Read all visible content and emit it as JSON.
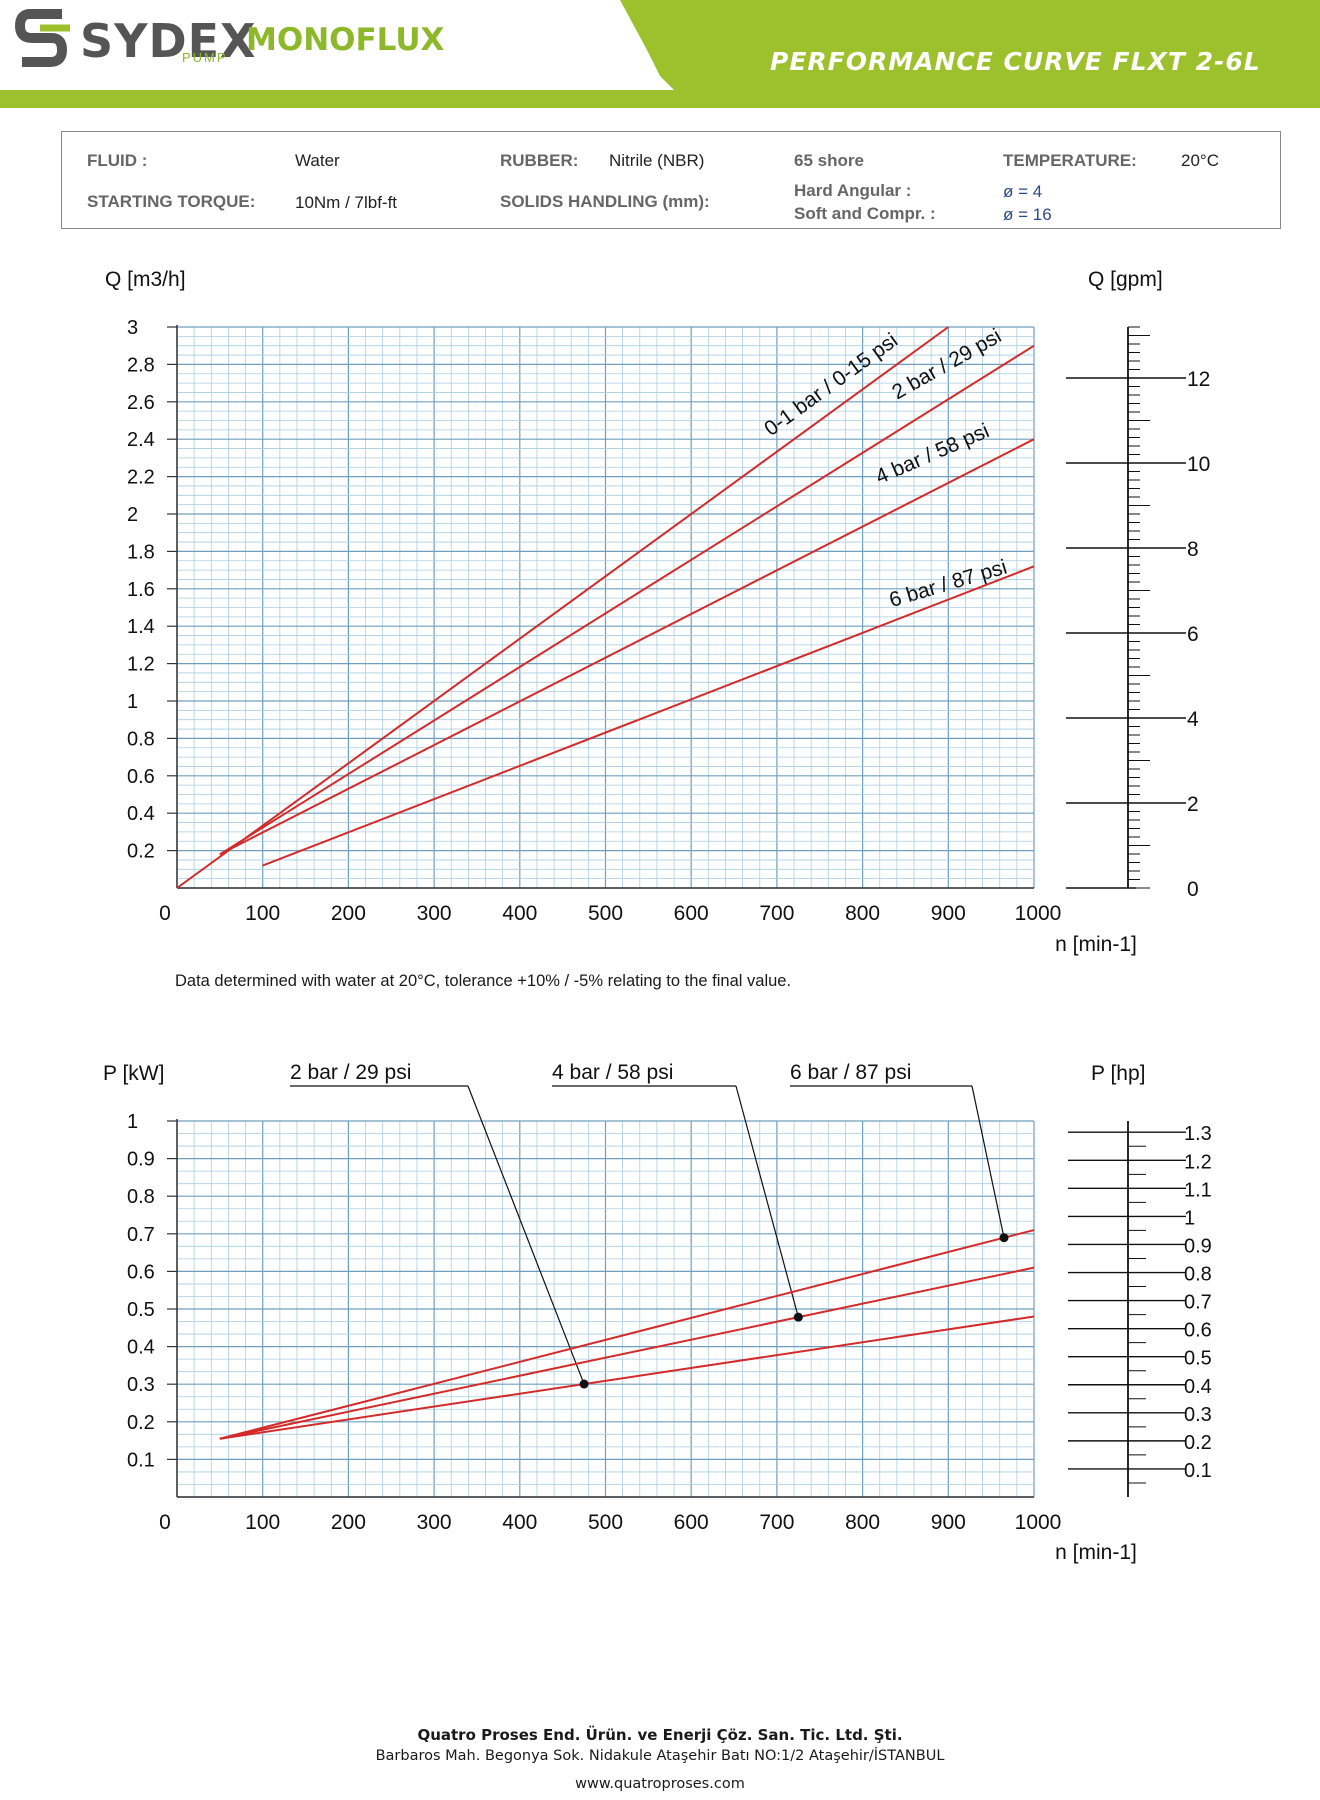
{
  "header": {
    "brand": "SYDEX",
    "brand_sub": "PUMP",
    "brand2": "MONOFLUX",
    "title": "PERFORMANCE CURVE FLXT  2-6L",
    "colors": {
      "green": "#9dc12c",
      "grey": "#555555"
    }
  },
  "info": {
    "fluid_label": "FLUID :",
    "fluid_value": "Water",
    "rubber_label": "RUBBER:",
    "rubber_value": "Nitrile (NBR)",
    "shore": "65 shore",
    "temperature_label": "TEMPERATURE:",
    "temperature_value": "20°C",
    "torque_label": "STARTING TORQUE:",
    "torque_value": "10Nm / 7lbf-ft",
    "solids_label": "SOLIDS HANDLING (mm):",
    "hard_label": "Hard Angular :",
    "hard_value": "ø = 4",
    "soft_label": "Soft and Compr. :",
    "soft_value": "ø = 16"
  },
  "note": "Data determined with water at 20°C, tolerance +10% / -5% relating to the final value.",
  "chart_data": [
    {
      "type": "line",
      "title": "",
      "ylabel": "Q [m3/h]",
      "y2label": "Q [gpm]",
      "xlabel": "n [min-1]",
      "xlim": [
        0,
        1000
      ],
      "ylim": [
        0,
        3
      ],
      "y2lim": [
        0,
        13.2
      ],
      "grid": true,
      "x_ticks": [
        "0",
        "100",
        "200",
        "300",
        "400",
        "500",
        "600",
        "700",
        "800",
        "900",
        "1000"
      ],
      "y_ticks": [
        "0.2",
        "0.4",
        "0.6",
        "0.8",
        "1",
        "1.2",
        "1.4",
        "1.6",
        "1.8",
        "2",
        "2.2",
        "2.4",
        "2.6",
        "2.8",
        "3"
      ],
      "y2_ticks": [
        "0",
        "2",
        "4",
        "6",
        "8",
        "10",
        "12"
      ],
      "series": [
        {
          "name": "0-1 bar / 0-15 psi",
          "x": [
            0,
            900
          ],
          "y": [
            0,
            3.0
          ]
        },
        {
          "name": "2 bar / 29 psi",
          "x": [
            50,
            1000
          ],
          "y": [
            0.18,
            2.9
          ]
        },
        {
          "name": "4 bar / 58 psi",
          "x": [
            50,
            1000
          ],
          "y": [
            0.18,
            2.4
          ]
        },
        {
          "name": "6 bar / 87 psi",
          "x": [
            100,
            1000
          ],
          "y": [
            0.12,
            1.72
          ]
        }
      ]
    },
    {
      "type": "line",
      "title": "",
      "ylabel": "P [kW]",
      "y2label": "P [hp]",
      "xlabel": "n [min-1]",
      "xlim": [
        0,
        1000
      ],
      "ylim": [
        0,
        1
      ],
      "y2lim": [
        0,
        1.34
      ],
      "grid": true,
      "x_ticks": [
        "0",
        "100",
        "200",
        "300",
        "400",
        "500",
        "600",
        "700",
        "800",
        "900",
        "1000"
      ],
      "y_ticks": [
        "0.1",
        "0.2",
        "0.3",
        "0.4",
        "0.5",
        "0.6",
        "0.7",
        "0.8",
        "0.9",
        "1"
      ],
      "y2_ticks": [
        "0.1",
        "0.2",
        "0.3",
        "0.4",
        "0.5",
        "0.6",
        "0.7",
        "0.8",
        "0.9",
        "1",
        "1.1",
        "1.2",
        "1.3"
      ],
      "series": [
        {
          "name": "2 bar / 29 psi",
          "x": [
            50,
            1000
          ],
          "y": [
            0.155,
            0.48
          ],
          "marker_x": 475
        },
        {
          "name": "4 bar / 58 psi",
          "x": [
            50,
            1000
          ],
          "y": [
            0.155,
            0.61
          ],
          "marker_x": 725
        },
        {
          "name": "6 bar / 87 psi",
          "x": [
            50,
            1000
          ],
          "y": [
            0.155,
            0.71
          ],
          "marker_x": 965
        }
      ]
    }
  ],
  "footer": {
    "company": "Quatro Proses End. Ürün. ve Enerji Çöz. San. Tic. Ltd. Şti.",
    "address": "Barbaros Mah. Begonya Sok. Nidakule Ataşehir Batı NO:1/2 Ataşehir/İSTANBUL",
    "website": "www.quatroproses.com"
  }
}
